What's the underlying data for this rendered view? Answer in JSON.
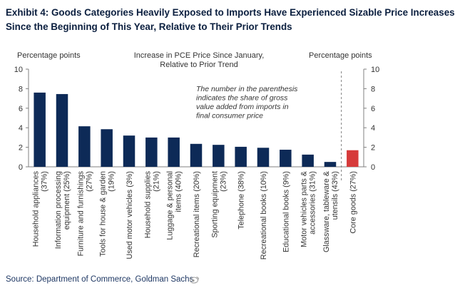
{
  "title": {
    "line1": "Exhibit 4: Goods Categories Heavily Exposed to Imports Have Experienced Sizable Price Increases",
    "line2": "Since the Beginning of This Year, Relative to Their Prior Trends"
  },
  "source": "Source: Department of Commerce, Goldman Sachs",
  "colors": {
    "bar": "#0d2a57",
    "core_bar": "#d63a3a",
    "text": "#333333"
  },
  "chart_data": {
    "type": "bar",
    "title": "Increase  in PCE Price Since January,\nRelative  to Prior Trend",
    "ylabel_left": "Percentage points",
    "ylabel_right": "Percentage points",
    "ylim": [
      0,
      10
    ],
    "yticks": [
      0,
      2,
      4,
      6,
      8,
      10
    ],
    "grid": false,
    "annotation": "The number in the parenthesis\nindicates the share of gross\nvalue added from imports in\nfinal consumer price",
    "categories": [
      "Household appliances\n(37%)",
      "Information processing\nequipment (25%)",
      "Furniture and furnishings\n(27%)",
      "Tools for house & garden\n(19%)",
      "Used motor vehicles (3%)",
      "Household supplies\n(21%)",
      "Luggage & personal\nitems (40%)",
      "Recreational items (20%)",
      "Sporting equipment\n(23%)",
      "Telephone (38%)",
      "Recreational books (10%)",
      "Educational books (9%)",
      "Motor vehicles parts &\naccessories (31%)",
      "Glassware, tableware &\nutensils (43%)",
      "Core goods (27%)"
    ],
    "values": [
      7.6,
      7.45,
      4.15,
      3.85,
      3.2,
      3.0,
      3.0,
      2.35,
      2.25,
      2.05,
      1.95,
      1.75,
      1.25,
      0.5,
      1.7
    ],
    "highlight_index": 14
  }
}
